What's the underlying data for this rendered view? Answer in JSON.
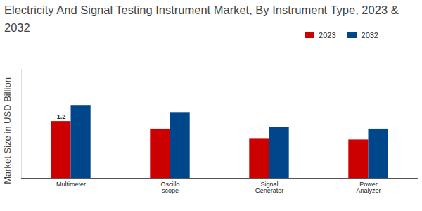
{
  "chart_data": {
    "type": "bar",
    "title": "Electricity And Signal Testing Instrument Market, By Instrument Type, 2023 & 2032",
    "y_label": "Market Size in USD Billion",
    "categories": [
      "Multimeter",
      "Oscillo scope",
      "Signal Generator",
      "Power Analyzer"
    ],
    "series": [
      {
        "name": "2023",
        "color": "#cc0000",
        "values": [
          1.2,
          1.04,
          0.84,
          0.81
        ],
        "value_labels": [
          "1.2",
          null,
          null,
          null
        ]
      },
      {
        "name": "2032",
        "color": "#00468b",
        "values": [
          1.54,
          1.39,
          1.08,
          1.04
        ]
      }
    ],
    "ylim": [
      0,
      2.3
    ],
    "yticks": [],
    "tick_labels": "x",
    "grid": false,
    "legend": "top-right"
  }
}
